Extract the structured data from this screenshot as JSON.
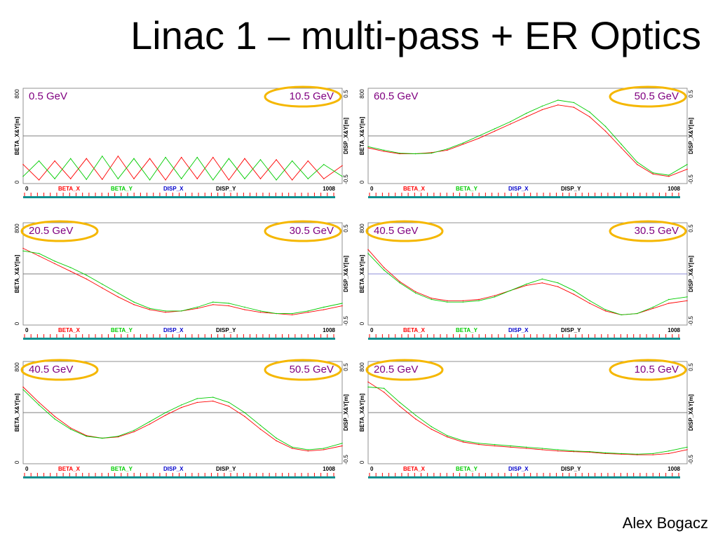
{
  "slide": {
    "title": "Linac 1 – multi-pass + ER Optics",
    "author": "Alex Bogacz"
  },
  "colors": {
    "beta_x": "#ff0000",
    "beta_y": "#00cc00",
    "disp_x": "#0000cc",
    "disp_y": "#000000",
    "energy_label": "#800080",
    "highlight_oval": "#f5b700",
    "beamline": "#0f8f8f",
    "element_ticks": "#ff0000"
  },
  "chart_data": [
    {
      "type": "line",
      "left_label": "0.5 GeV",
      "right_label": "10.5 GeV",
      "highlighted": [
        "right"
      ],
      "xlabel_start": "0",
      "xlabel_end": "1008",
      "xlim": [
        0,
        1008
      ],
      "y_left": {
        "label": "BETA_X&Y[m]",
        "ticks": [
          "0",
          "800"
        ],
        "range": [
          0,
          800
        ]
      },
      "y_right": {
        "label": "DISP_X&Y[m]",
        "ticks": [
          "-0.5",
          "0.5"
        ],
        "range": [
          -0.5,
          0.5
        ]
      },
      "legend": [
        "BETA_X",
        "BETA_Y",
        "DISP_X",
        "DISP_Y"
      ],
      "series": [
        {
          "name": "BETA_X",
          "x": [
            0,
            50,
            100,
            150,
            200,
            250,
            300,
            350,
            400,
            450,
            500,
            550,
            600,
            650,
            700,
            750,
            800,
            850,
            900,
            950,
            1008
          ],
          "values": [
            160,
            30,
            190,
            40,
            210,
            35,
            230,
            40,
            210,
            30,
            220,
            40,
            220,
            30,
            210,
            40,
            200,
            30,
            190,
            40,
            150
          ]
        },
        {
          "name": "BETA_Y",
          "x": [
            0,
            50,
            100,
            150,
            200,
            250,
            300,
            350,
            400,
            450,
            500,
            550,
            600,
            650,
            700,
            750,
            800,
            850,
            900,
            950,
            1008
          ],
          "values": [
            60,
            190,
            40,
            210,
            35,
            230,
            40,
            210,
            30,
            220,
            40,
            220,
            30,
            210,
            40,
            200,
            30,
            190,
            40,
            160,
            60
          ]
        }
      ]
    },
    {
      "type": "line",
      "left_label": "60.5 GeV",
      "right_label": "50.5 GeV",
      "highlighted": [
        "right"
      ],
      "xlabel_start": "0",
      "xlabel_end": "1008",
      "xlim": [
        0,
        1008
      ],
      "y_left": {
        "label": "BETA_X&Y[m]",
        "ticks": [
          "0",
          "800"
        ],
        "range": [
          0,
          800
        ]
      },
      "y_right": {
        "label": "DISP_X&Y[m]",
        "ticks": [
          "-0.5",
          "0.5"
        ],
        "range": [
          -0.5,
          0.5
        ]
      },
      "legend": [
        "BETA_X",
        "BETA_Y",
        "DISP_X",
        "DISP_Y"
      ],
      "series": [
        {
          "name": "BETA_X",
          "x": [
            0,
            50,
            100,
            150,
            200,
            250,
            300,
            350,
            400,
            450,
            500,
            550,
            600,
            650,
            700,
            750,
            800,
            850,
            900,
            950,
            1008
          ],
          "values": [
            300,
            270,
            250,
            250,
            260,
            280,
            330,
            380,
            440,
            500,
            560,
            620,
            660,
            640,
            560,
            440,
            300,
            160,
            80,
            60,
            120
          ]
        },
        {
          "name": "BETA_Y",
          "x": [
            0,
            50,
            100,
            150,
            200,
            250,
            300,
            350,
            400,
            450,
            500,
            550,
            600,
            650,
            700,
            750,
            800,
            850,
            900,
            950,
            1008
          ],
          "values": [
            310,
            280,
            255,
            250,
            255,
            290,
            340,
            400,
            460,
            520,
            590,
            650,
            700,
            680,
            600,
            480,
            330,
            180,
            90,
            70,
            160
          ]
        }
      ]
    },
    {
      "type": "line",
      "left_label": "20.5 GeV",
      "right_label": "30.5 GeV",
      "highlighted": [
        "left",
        "right"
      ],
      "xlabel_start": "0",
      "xlabel_end": "1008",
      "xlim": [
        0,
        1008
      ],
      "y_left": {
        "label": "BETA_X&Y[m]",
        "ticks": [
          "0",
          "800"
        ],
        "range": [
          0,
          800
        ]
      },
      "y_right": {
        "label": "DISP_X&Y[m]",
        "ticks": [
          "-0.5",
          "0.5"
        ],
        "range": [
          -0.5,
          0.5
        ]
      },
      "legend": [
        "BETA_X",
        "BETA_Y",
        "DISP_X",
        "DISP_Y"
      ],
      "series": [
        {
          "name": "BETA_X",
          "x": [
            0,
            50,
            100,
            150,
            200,
            250,
            300,
            350,
            400,
            450,
            500,
            550,
            600,
            650,
            700,
            750,
            800,
            850,
            900,
            950,
            1008
          ],
          "values": [
            600,
            540,
            480,
            420,
            360,
            290,
            220,
            160,
            120,
            100,
            110,
            130,
            160,
            150,
            120,
            100,
            90,
            80,
            100,
            120,
            150
          ]
        },
        {
          "name": "BETA_Y",
          "x": [
            0,
            50,
            100,
            150,
            200,
            250,
            300,
            350,
            400,
            450,
            500,
            550,
            600,
            650,
            700,
            750,
            800,
            850,
            900,
            950,
            1008
          ],
          "values": [
            580,
            560,
            500,
            450,
            390,
            320,
            250,
            180,
            130,
            110,
            110,
            140,
            180,
            170,
            140,
            110,
            90,
            90,
            110,
            140,
            170
          ]
        }
      ]
    },
    {
      "type": "line",
      "left_label": "40.5 GeV",
      "right_label": "30.5 GeV",
      "highlighted": [
        "left",
        "right"
      ],
      "xlabel_start": "0",
      "xlabel_end": "1008",
      "xlim": [
        0,
        1008
      ],
      "y_left": {
        "label": "BETA_X&Y[m]",
        "ticks": [
          "0",
          "800"
        ],
        "range": [
          0,
          800
        ]
      },
      "y_right": {
        "label": "DISP_X&Y[m]",
        "ticks": [
          "-0.5",
          "0.5"
        ],
        "range": [
          -0.5,
          0.5
        ]
      },
      "legend": [
        "BETA_X",
        "BETA_Y",
        "DISP_X",
        "DISP_Y"
      ],
      "series": [
        {
          "name": "BETA_X",
          "x": [
            0,
            50,
            100,
            150,
            200,
            250,
            300,
            350,
            400,
            450,
            500,
            550,
            600,
            650,
            700,
            750,
            800,
            850,
            900,
            950,
            1008
          ],
          "values": [
            590,
            450,
            340,
            260,
            210,
            190,
            190,
            200,
            230,
            270,
            310,
            330,
            300,
            240,
            170,
            110,
            80,
            90,
            130,
            170,
            190
          ]
        },
        {
          "name": "BETA_Y",
          "x": [
            0,
            50,
            100,
            150,
            200,
            250,
            300,
            350,
            400,
            450,
            500,
            550,
            600,
            650,
            700,
            750,
            800,
            850,
            900,
            950,
            1008
          ],
          "values": [
            560,
            430,
            330,
            250,
            200,
            180,
            180,
            190,
            220,
            270,
            320,
            360,
            330,
            270,
            190,
            120,
            80,
            90,
            140,
            200,
            220
          ]
        }
      ]
    },
    {
      "type": "line",
      "left_label": "40.5 GeV",
      "right_label": "50.5 GeV",
      "highlighted": [
        "left",
        "right"
      ],
      "xlabel_start": "0",
      "xlabel_end": "1008",
      "xlim": [
        0,
        1008
      ],
      "y_left": {
        "label": "BETA_X&Y[m]",
        "ticks": [
          "0",
          "800"
        ],
        "range": [
          0,
          800
        ]
      },
      "y_right": {
        "label": "DISP_X&Y[m]",
        "ticks": [
          "-0.5",
          "0.5"
        ],
        "range": [
          -0.5,
          0.5
        ]
      },
      "legend": [
        "BETA_X",
        "BETA_Y",
        "DISP_X",
        "DISP_Y"
      ],
      "series": [
        {
          "name": "BETA_X",
          "x": [
            0,
            50,
            100,
            150,
            200,
            250,
            300,
            350,
            400,
            450,
            500,
            550,
            600,
            650,
            700,
            750,
            800,
            850,
            900,
            950,
            1008
          ],
          "values": [
            600,
            480,
            370,
            280,
            220,
            200,
            210,
            250,
            310,
            380,
            440,
            480,
            490,
            450,
            370,
            270,
            180,
            120,
            100,
            110,
            140
          ]
        },
        {
          "name": "BETA_Y",
          "x": [
            0,
            50,
            100,
            150,
            200,
            250,
            300,
            350,
            400,
            450,
            500,
            550,
            600,
            650,
            700,
            750,
            800,
            850,
            900,
            950,
            1008
          ],
          "values": [
            580,
            460,
            350,
            270,
            215,
            200,
            215,
            260,
            330,
            400,
            460,
            510,
            520,
            480,
            400,
            300,
            200,
            130,
            110,
            120,
            160
          ]
        }
      ]
    },
    {
      "type": "line",
      "left_label": "20.5 GeV",
      "right_label": "10.5 GeV",
      "highlighted": [
        "left",
        "right"
      ],
      "xlabel_start": "0",
      "xlabel_end": "1008",
      "xlim": [
        0,
        1008
      ],
      "y_left": {
        "label": "BETA_X&Y[m]",
        "ticks": [
          "0",
          "800"
        ],
        "range": [
          0,
          800
        ]
      },
      "y_right": {
        "label": "DISP_X&Y[m]",
        "ticks": [
          "-0.5",
          "0.5"
        ],
        "range": [
          -0.5,
          0.5
        ]
      },
      "legend": [
        "BETA_X",
        "BETA_Y",
        "DISP_X",
        "DISP_Y"
      ],
      "series": [
        {
          "name": "BETA_X",
          "x": [
            0,
            50,
            100,
            150,
            200,
            250,
            300,
            350,
            400,
            450,
            500,
            550,
            600,
            650,
            700,
            750,
            800,
            850,
            900,
            950,
            1008
          ],
          "values": [
            640,
            560,
            450,
            350,
            270,
            210,
            170,
            150,
            140,
            130,
            120,
            110,
            100,
            95,
            90,
            80,
            75,
            70,
            70,
            80,
            110
          ]
        },
        {
          "name": "BETA_Y",
          "x": [
            0,
            50,
            100,
            150,
            200,
            250,
            300,
            350,
            400,
            450,
            500,
            550,
            600,
            650,
            700,
            750,
            800,
            850,
            900,
            950,
            1008
          ],
          "values": [
            600,
            590,
            480,
            380,
            290,
            220,
            180,
            160,
            150,
            140,
            130,
            120,
            110,
            100,
            95,
            85,
            80,
            75,
            80,
            100,
            130
          ]
        }
      ]
    }
  ]
}
